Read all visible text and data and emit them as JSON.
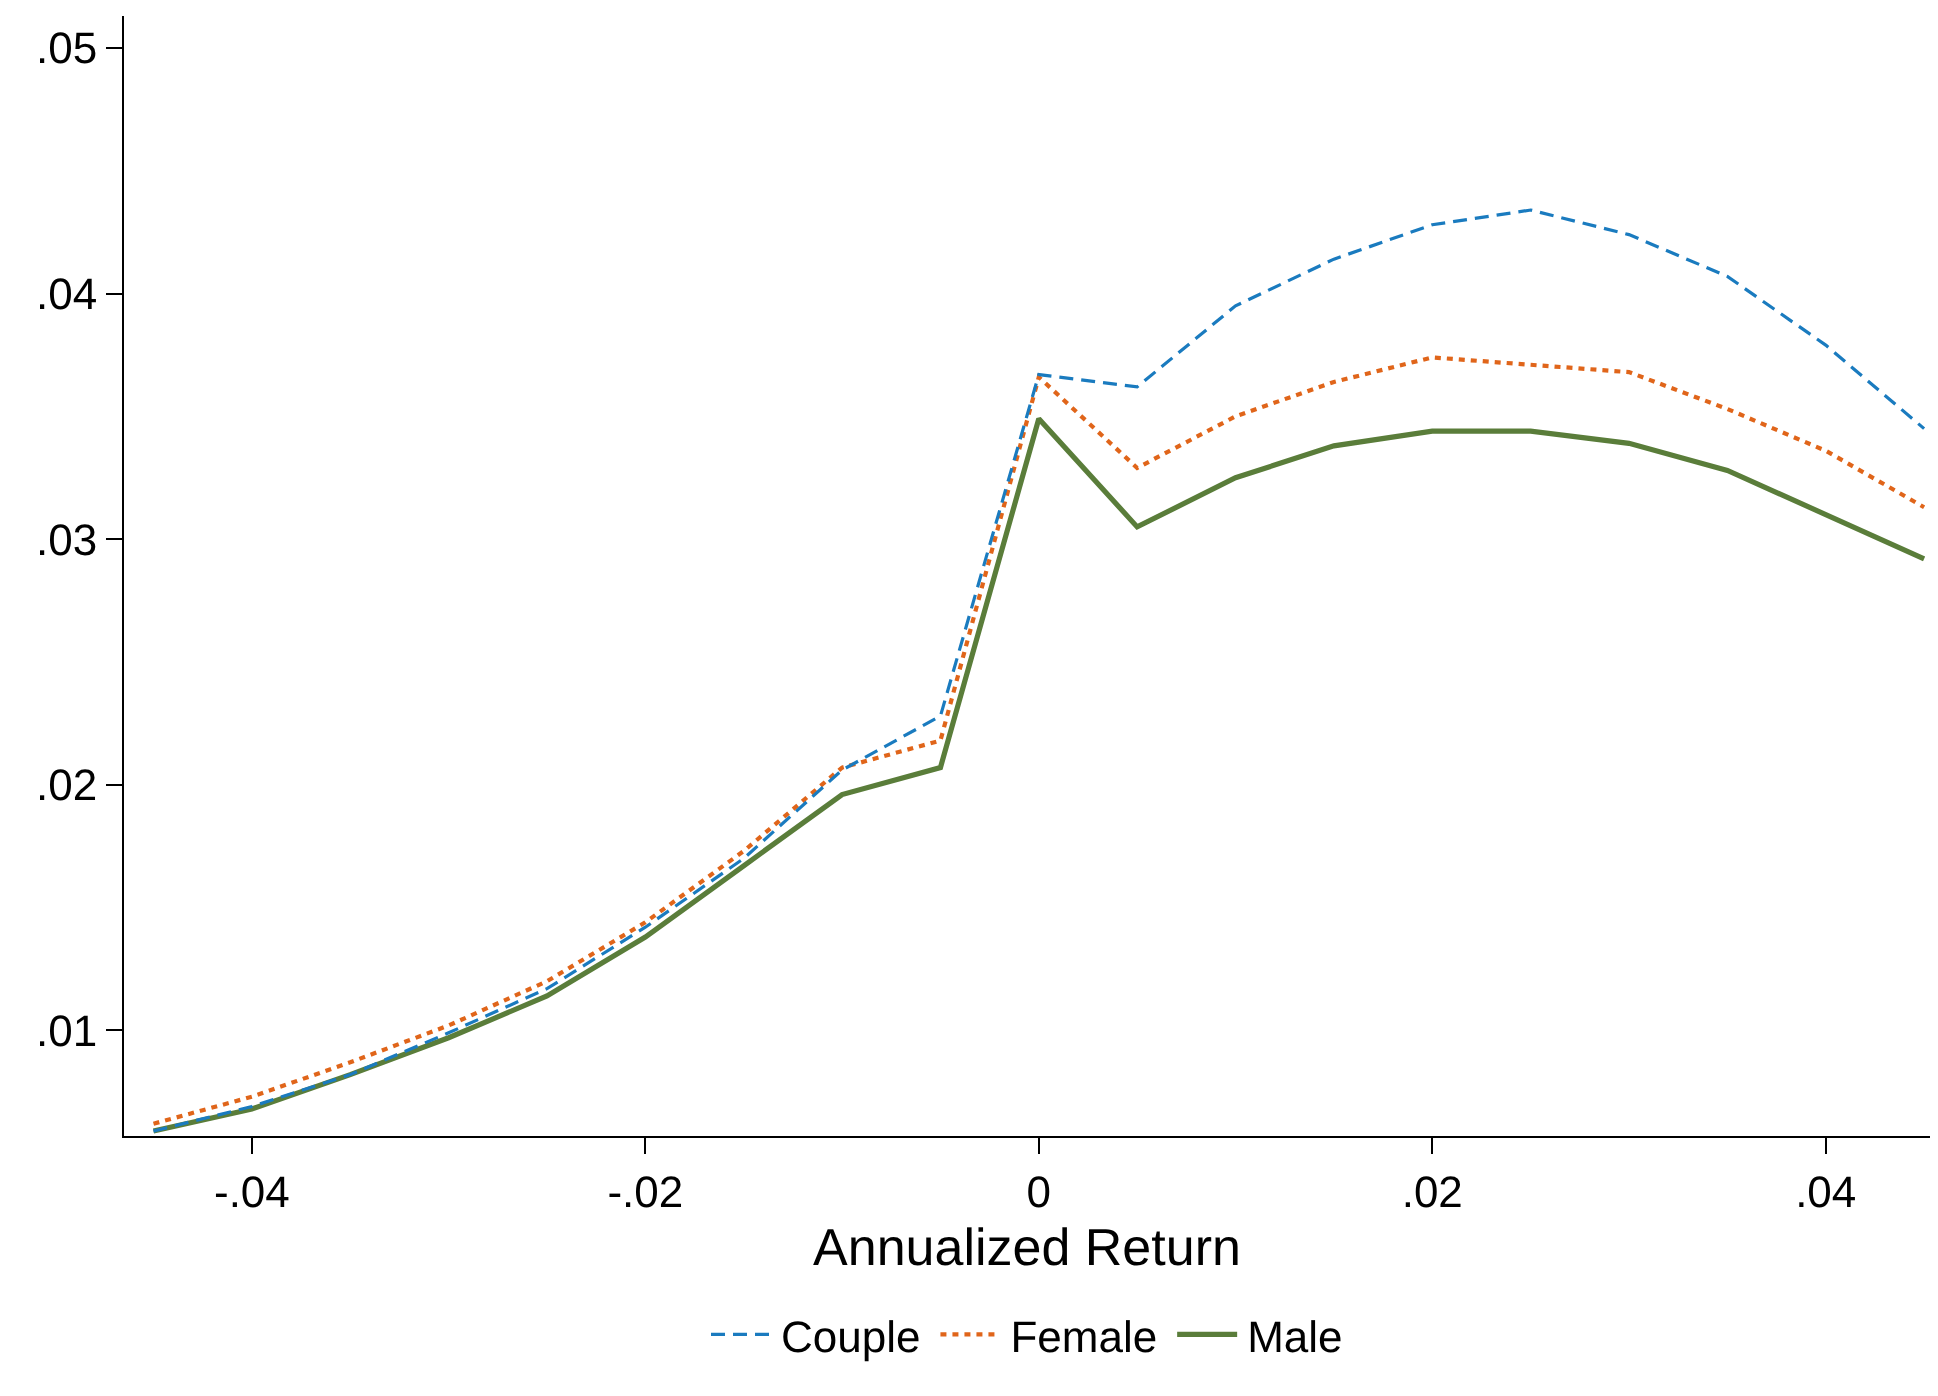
{
  "chart_data": {
    "type": "line",
    "xlabel": "Annualized Return",
    "x": [
      -0.045,
      -0.04,
      -0.035,
      -0.03,
      -0.025,
      -0.02,
      -0.015,
      -0.01,
      -0.005,
      0,
      0.005,
      0.01,
      0.015,
      0.02,
      0.025,
      0.03,
      0.035,
      0.04,
      0.045
    ],
    "series": [
      {
        "name": "Couple",
        "color": "#1a7bbf",
        "line_style": "dashed",
        "values": [
          0.0059,
          0.0069,
          0.0082,
          0.0099,
          0.0117,
          0.0142,
          0.017,
          0.0206,
          0.0228,
          0.0367,
          0.0362,
          0.0395,
          0.0414,
          0.0428,
          0.0434,
          0.0424,
          0.0407,
          0.0379,
          0.0345
        ]
      },
      {
        "name": "Female",
        "color": "#e0651a",
        "line_style": "dotted",
        "values": [
          0.0062,
          0.0073,
          0.0087,
          0.0102,
          0.012,
          0.0144,
          0.0173,
          0.0207,
          0.0218,
          0.0366,
          0.0329,
          0.035,
          0.0364,
          0.0374,
          0.0371,
          0.0368,
          0.0353,
          0.0336,
          0.0313
        ]
      },
      {
        "name": "Male",
        "color": "#5a7d3a",
        "line_style": "solid",
        "values": [
          0.0059,
          0.0068,
          0.0082,
          0.0097,
          0.0114,
          0.0138,
          0.0167,
          0.0196,
          0.0207,
          0.0349,
          0.0305,
          0.0325,
          0.0338,
          0.0344,
          0.0344,
          0.0339,
          0.0328,
          0.031,
          0.0292
        ]
      }
    ],
    "xlim": [
      -0.0465,
      0.0453
    ],
    "ylim": [
      0.0057,
      0.0513
    ],
    "xticks": [
      {
        "value": -0.04,
        "label": "-.04"
      },
      {
        "value": -0.02,
        "label": "-.02"
      },
      {
        "value": 0,
        "label": "0"
      },
      {
        "value": 0.02,
        "label": ".02"
      },
      {
        "value": 0.04,
        "label": ".04"
      }
    ],
    "yticks": [
      {
        "value": 0.01,
        "label": ".01"
      },
      {
        "value": 0.02,
        "label": ".02"
      },
      {
        "value": 0.03,
        "label": ".03"
      },
      {
        "value": 0.04,
        "label": ".04"
      },
      {
        "value": 0.05,
        "label": ".05"
      }
    ],
    "grid": false,
    "legend": "bottom",
    "marker": "none"
  }
}
